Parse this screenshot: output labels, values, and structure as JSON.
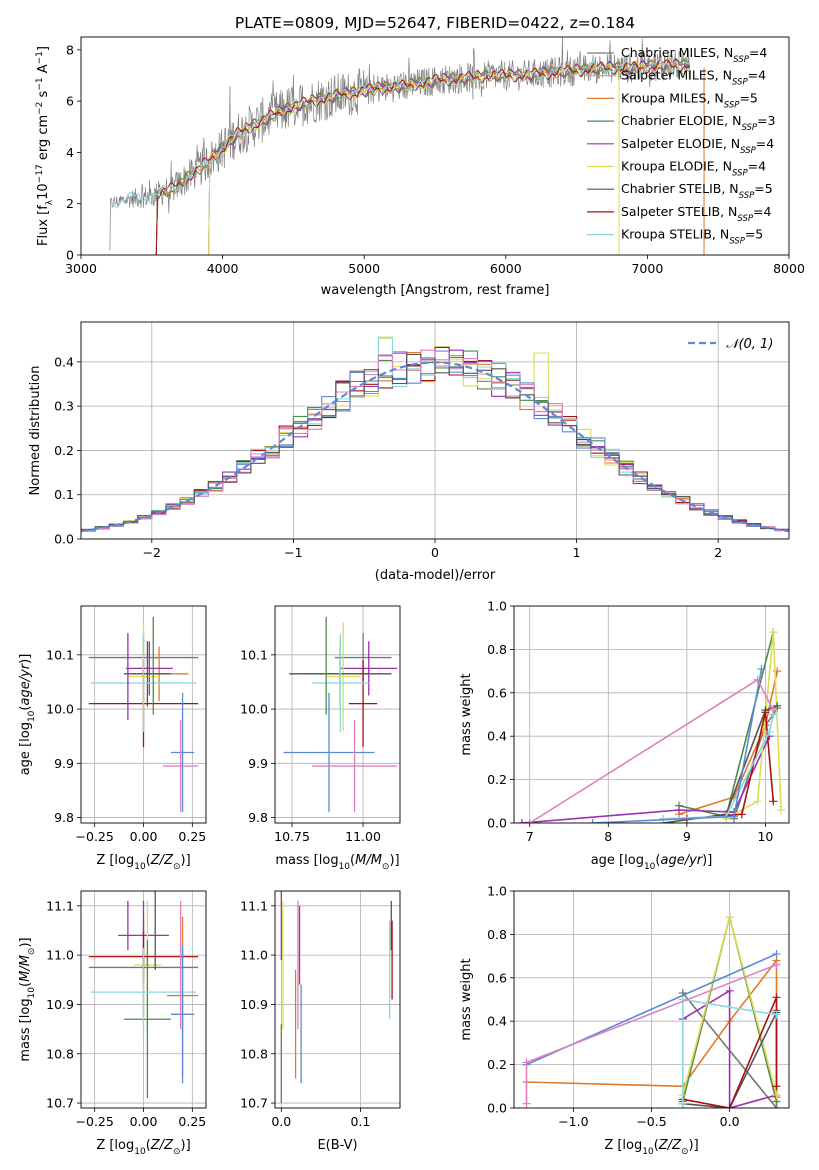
{
  "colors": {
    "Chabrier MILES": "#777777",
    "Salpeter MILES": "#aaaaaa",
    "Kroupa MILES": "#e07b27",
    "Chabrier ELODIE": "#4c8a4c",
    "Salpeter ELODIE": "#9b30b0",
    "Kroupa ELODIE": "#dddd55",
    "Chabrier STELIB": "#555555",
    "Salpeter STELIB": "#aa1111",
    "Kroupa STELIB": "#88d8e0",
    "blue": "#5b8ad8",
    "pink": "#e080c0"
  },
  "chart_data": [
    {
      "id": "spectrum",
      "type": "line",
      "title": "PLATE=0809, MJD=52647, FIBERID=0422, z=0.184",
      "xlabel": "wavelength [Angstrom, rest frame]",
      "ylabel": "Flux [f_λ10^-17 erg cm^-2 s^-1 A^-1]",
      "xlim": [
        3000,
        8000
      ],
      "ylim": [
        0,
        8.5
      ],
      "xticks": [
        3000,
        4000,
        5000,
        6000,
        7000,
        8000
      ],
      "yticks": [
        0,
        2,
        4,
        6,
        8
      ],
      "legend": "top-right",
      "legend_entries": [
        {
          "label": "Chabrier MILES, N",
          "sub": "SSP",
          "n": "=4"
        },
        {
          "label": "Salpeter MILES, N",
          "sub": "SSP",
          "n": "=4"
        },
        {
          "label": "Kroupa MILES, N",
          "sub": "SSP",
          "n": "=5"
        },
        {
          "label": "Chabrier ELODIE, N",
          "sub": "SSP",
          "n": "=3"
        },
        {
          "label": "Salpeter ELODIE, N",
          "sub": "SSP",
          "n": "=4"
        },
        {
          "label": "Kroupa ELODIE, N",
          "sub": "SSP",
          "n": "=4"
        },
        {
          "label": "Chabrier STELIB, N",
          "sub": "SSP",
          "n": "=5"
        },
        {
          "label": "Salpeter STELIB, N",
          "sub": "SSP",
          "n": "=4"
        },
        {
          "label": "Kroupa STELIB, N",
          "sub": "SSP",
          "n": "=5"
        }
      ],
      "continuum": {
        "x": [
          3200,
          3350,
          3500,
          3650,
          3800,
          3950,
          4100,
          4300,
          4500,
          4700,
          4900,
          5100,
          5300,
          5500,
          5700,
          5900,
          6100,
          6300,
          6500,
          6700,
          6900,
          7100,
          7300
        ],
        "y": [
          2.0,
          2.2,
          2.3,
          2.6,
          3.2,
          3.9,
          4.7,
          5.3,
          5.8,
          6.1,
          6.3,
          6.5,
          6.6,
          6.8,
          6.9,
          7.0,
          7.0,
          7.1,
          7.2,
          7.3,
          7.3,
          7.4,
          7.4
        ]
      }
    },
    {
      "id": "residuals",
      "type": "histogram",
      "xlabel": "(data-model)/error",
      "ylabel": "Normed distribution",
      "xlim": [
        -2.5,
        2.5
      ],
      "ylim": [
        0,
        0.49
      ],
      "xticks": [
        -2,
        -1,
        0,
        1,
        2
      ],
      "yticks": [
        0.0,
        0.1,
        0.2,
        0.3,
        0.4
      ],
      "legend_label": "𝒩(0, 1)",
      "legend": "top-right",
      "bin_width": 0.1,
      "bin_start": -2.5
    },
    {
      "id": "age-vs-Z",
      "type": "errorbar",
      "xlabel": "Z [log10(Z/Z⊙)]",
      "ylabel": "age  [log10(age/yr)]",
      "xlim": [
        -0.32,
        0.32
      ],
      "ylim": [
        9.79,
        10.19
      ],
      "xticks": [
        -0.25,
        0.0,
        0.25
      ],
      "yticks": [
        9.8,
        9.9,
        10.0,
        10.1
      ],
      "points": [
        {
          "x": 0.0,
          "y": 10.095,
          "xerr": 0.28,
          "yerr": 0.045,
          "c": "Chabrier MILES"
        },
        {
          "x": 0.08,
          "y": 10.065,
          "xerr": 0.15,
          "yerr": 0.05,
          "c": "Kroupa MILES"
        },
        {
          "x": 0.03,
          "y": 10.075,
          "xerr": 0.12,
          "yerr": 0.05,
          "c": "Salpeter ELODIE"
        },
        {
          "x": 0.0,
          "y": 10.06,
          "xerr": 0.08,
          "yerr": 0.1,
          "c": "Kroupa ELODIE"
        },
        {
          "x": 0.02,
          "y": 10.065,
          "xerr": 0.12,
          "yerr": 0.06,
          "c": "Chabrier STELIB"
        },
        {
          "x": 0.0,
          "y": 10.01,
          "xerr": 0.28,
          "yerr": 0.08,
          "c": "Salpeter STELIB"
        },
        {
          "x": 0.0,
          "y": 10.048,
          "xerr": 0.27,
          "yerr": 0.09,
          "c": "Kroupa STELIB"
        },
        {
          "x": 0.2,
          "y": 9.92,
          "xerr": 0.06,
          "yerr": 0.11,
          "c": "blue"
        },
        {
          "x": 0.19,
          "y": 9.895,
          "xerr": 0.09,
          "yerr": 0.085,
          "c": "pink"
        },
        {
          "x": -0.08,
          "y": 10.06,
          "xerr": 0.0,
          "yerr": 0.08,
          "c": "Salpeter ELODIE"
        },
        {
          "x": 0.05,
          "y": 10.08,
          "xerr": 0.0,
          "yerr": 0.09,
          "c": "Chabrier ELODIE"
        }
      ]
    },
    {
      "id": "age-vs-mass",
      "type": "errorbar",
      "xlabel": "mass [log10(M/M⊙)]",
      "ylabel": "",
      "xlim": [
        10.69,
        11.13
      ],
      "ylim": [
        9.79,
        10.19
      ],
      "xticks": [
        10.75,
        11.0
      ],
      "yticks": [
        9.8,
        9.9,
        10.0,
        10.1
      ],
      "points": [
        {
          "x": 11.0,
          "y": 10.095,
          "xerr": 0.1,
          "yerr": 0.045,
          "c": "Chabrier MILES"
        },
        {
          "x": 10.92,
          "y": 10.065,
          "xerr": 0.14,
          "yerr": 0.05,
          "c": "Kroupa MILES"
        },
        {
          "x": 11.02,
          "y": 10.075,
          "xerr": 0.1,
          "yerr": 0.05,
          "c": "Salpeter ELODIE"
        },
        {
          "x": 10.93,
          "y": 10.06,
          "xerr": 0.06,
          "yerr": 0.1,
          "c": "Kroupa ELODIE"
        },
        {
          "x": 10.92,
          "y": 10.065,
          "xerr": 0.18,
          "yerr": 0.06,
          "c": "Chabrier STELIB"
        },
        {
          "x": 11.0,
          "y": 10.01,
          "xerr": 0.05,
          "yerr": 0.08,
          "c": "Salpeter STELIB"
        },
        {
          "x": 10.92,
          "y": 10.048,
          "xerr": 0.1,
          "yerr": 0.09,
          "c": "Kroupa STELIB"
        },
        {
          "x": 10.88,
          "y": 9.92,
          "xerr": 0.16,
          "yerr": 0.11,
          "c": "blue"
        },
        {
          "x": 10.97,
          "y": 9.895,
          "xerr": 0.15,
          "yerr": 0.085,
          "c": "pink"
        },
        {
          "x": 10.87,
          "y": 10.08,
          "xerr": 0.0,
          "yerr": 0.09,
          "c": "Chabrier ELODIE"
        }
      ]
    },
    {
      "id": "massweight-vs-age",
      "type": "line",
      "xlabel": "age  [log10(age/yr)]",
      "ylabel": "mass weight",
      "xlim": [
        6.8,
        10.3
      ],
      "ylim": [
        0.0,
        1.0
      ],
      "xticks": [
        7,
        8,
        9,
        10
      ],
      "yticks": [
        0.0,
        0.2,
        0.4,
        0.6,
        0.8,
        1.0
      ],
      "series": [
        {
          "c": "Chabrier MILES",
          "x": [
            9.6,
            10.0,
            10.1,
            10.15
          ],
          "y": [
            0.02,
            0.45,
            0.5,
            0.53
          ]
        },
        {
          "c": "Kroupa MILES",
          "x": [
            8.9,
            9.6,
            10.0,
            10.15
          ],
          "y": [
            0.04,
            0.12,
            0.45,
            0.7
          ]
        },
        {
          "c": "Chabrier ELODIE",
          "x": [
            8.9,
            9.5,
            10.1
          ],
          "y": [
            0.08,
            0.03,
            0.88
          ]
        },
        {
          "c": "Salpeter ELODIE",
          "x": [
            6.9,
            8.9,
            9.6,
            10.05
          ],
          "y": [
            0.0,
            0.06,
            0.05,
            0.4
          ]
        },
        {
          "c": "Kroupa ELODIE",
          "x": [
            9.5,
            9.9,
            10.1,
            10.2
          ],
          "y": [
            0.02,
            0.1,
            0.88,
            0.06
          ]
        },
        {
          "c": "Chabrier STELIB",
          "x": [
            8.7,
            9.5,
            10.0,
            10.15
          ],
          "y": [
            0.0,
            0.04,
            0.52,
            0.54
          ]
        },
        {
          "c": "Salpeter STELIB",
          "x": [
            9.0,
            9.7,
            10.0,
            10.1
          ],
          "y": [
            0.02,
            0.04,
            0.51,
            0.1
          ]
        },
        {
          "c": "Kroupa STELIB",
          "x": [
            8.7,
            9.5,
            10.05,
            10.1
          ],
          "y": [
            0.02,
            0.03,
            0.42,
            0.5
          ]
        },
        {
          "c": "blue",
          "x": [
            7.8,
            9.6,
            9.95
          ],
          "y": [
            0.0,
            0.03,
            0.71
          ]
        },
        {
          "c": "pink",
          "x": [
            7.0,
            9.9,
            10.1
          ],
          "y": [
            0.0,
            0.66,
            0.52
          ]
        }
      ]
    },
    {
      "id": "mass-vs-Z",
      "type": "errorbar",
      "xlabel": "Z [log10(Z/Z⊙)]",
      "ylabel": "mass [log10(M/M⊙)]",
      "xlim": [
        -0.32,
        0.32
      ],
      "ylim": [
        10.69,
        11.13
      ],
      "xticks": [
        -0.25,
        0.0,
        0.25
      ],
      "yticks": [
        10.7,
        10.8,
        10.9,
        11.0,
        11.1
      ],
      "points": [
        {
          "x": 0.0,
          "y": 10.975,
          "xerr": 0.28,
          "yerr": 0.1,
          "c": "Chabrier MILES"
        },
        {
          "x": 0.2,
          "y": 10.918,
          "xerr": 0.08,
          "yerr": 0.16,
          "c": "Kroupa MILES"
        },
        {
          "x": 0.0,
          "y": 11.04,
          "xerr": 0.13,
          "yerr": 0.07,
          "c": "Salpeter ELODIE"
        },
        {
          "x": 0.02,
          "y": 10.98,
          "xerr": 0.07,
          "yerr": 0.13,
          "c": "Kroupa ELODIE"
        },
        {
          "x": 0.02,
          "y": 10.87,
          "xerr": 0.12,
          "yerr": 0.16,
          "c": "Chabrier ELODIE"
        },
        {
          "x": 0.0,
          "y": 10.997,
          "xerr": 0.28,
          "yerr": 0.05,
          "c": "Salpeter STELIB"
        },
        {
          "x": 0.0,
          "y": 10.925,
          "xerr": 0.27,
          "yerr": 0.09,
          "c": "Kroupa STELIB"
        },
        {
          "x": 0.2,
          "y": 10.88,
          "xerr": 0.06,
          "yerr": 0.14,
          "c": "blue"
        },
        {
          "x": 0.19,
          "y": 10.98,
          "xerr": 0.0,
          "yerr": 0.13,
          "c": "pink"
        },
        {
          "x": 0.06,
          "y": 11.05,
          "xerr": 0.0,
          "yerr": 0.08,
          "c": "Chabrier STELIB"
        },
        {
          "x": -0.08,
          "y": 11.06,
          "xerr": 0.0,
          "yerr": 0.05,
          "c": "Salpeter ELODIE"
        }
      ]
    },
    {
      "id": "mass-vs-EBV",
      "type": "errorbar",
      "xlabel": "E(B-V)",
      "ylabel": "",
      "xlim": [
        -0.008,
        0.15
      ],
      "ylim": [
        10.69,
        11.13
      ],
      "xticks": [
        0.0,
        0.1
      ],
      "yticks": [
        10.7,
        10.8,
        10.9,
        11.0,
        11.1
      ],
      "points": [
        {
          "x": 0.0,
          "y": 10.78,
          "xerr": 0,
          "yerr": 0.08,
          "c": "Chabrier ELODIE"
        },
        {
          "x": 0.0,
          "y": 11.06,
          "xerr": 0,
          "yerr": 0.07,
          "c": "Salpeter ELODIE"
        },
        {
          "x": 0.002,
          "y": 10.98,
          "xerr": 0,
          "yerr": 0.13,
          "c": "Kroupa ELODIE"
        },
        {
          "x": 0.018,
          "y": 10.86,
          "xerr": 0,
          "yerr": 0.11,
          "c": "Kroupa MILES"
        },
        {
          "x": 0.023,
          "y": 11.02,
          "xerr": 0,
          "yerr": 0.08,
          "c": "Salpeter ELODIE"
        },
        {
          "x": 0.021,
          "y": 10.98,
          "xerr": 0,
          "yerr": 0.13,
          "c": "pink"
        },
        {
          "x": 0.025,
          "y": 10.84,
          "xerr": 0,
          "yerr": 0.1,
          "c": "blue"
        },
        {
          "x": 0.137,
          "y": 10.97,
          "xerr": 0,
          "yerr": 0.1,
          "c": "Kroupa STELIB"
        },
        {
          "x": 0.139,
          "y": 11.06,
          "xerr": 0,
          "yerr": 0.05,
          "c": "Chabrier STELIB"
        },
        {
          "x": 0.14,
          "y": 10.99,
          "xerr": 0,
          "yerr": 0.08,
          "c": "Salpeter STELIB"
        }
      ]
    },
    {
      "id": "massweight-vs-Z",
      "type": "line",
      "xlabel": "Z [log10(Z/Z⊙)]",
      "ylabel": "mass weight",
      "xlim": [
        -1.38,
        0.38
      ],
      "ylim": [
        0.0,
        1.0
      ],
      "xticks": [
        -1.0,
        -0.5,
        0.0
      ],
      "yticks": [
        0.0,
        0.2,
        0.4,
        0.6,
        0.8,
        1.0
      ],
      "series": [
        {
          "c": "Chabrier MILES",
          "x": [
            -0.3,
            0.3,
            0.3
          ],
          "y": [
            0.53,
            0.0,
            0.45
          ]
        },
        {
          "c": "Kroupa MILES",
          "x": [
            -1.3,
            -0.3,
            0.0,
            0.3,
            0.3
          ],
          "y": [
            0.12,
            0.1,
            0.4,
            0.68,
            0.05
          ]
        },
        {
          "c": "Chabrier ELODIE",
          "x": [
            -0.3,
            0.0,
            0.3
          ],
          "y": [
            0.03,
            0.88,
            0.03
          ]
        },
        {
          "c": "Salpeter ELODIE",
          "x": [
            -0.3,
            0.0,
            0.0,
            0.3
          ],
          "y": [
            0.41,
            0.54,
            0.0,
            0.06
          ]
        },
        {
          "c": "Kroupa ELODIE",
          "x": [
            -0.3,
            0.0,
            0.3
          ],
          "y": [
            0.06,
            0.88,
            0.06
          ]
        },
        {
          "c": "Chabrier STELIB",
          "x": [
            -0.3,
            0.0,
            0.3
          ],
          "y": [
            0.02,
            0.0,
            0.44
          ]
        },
        {
          "c": "Salpeter STELIB",
          "x": [
            -0.3,
            0.0,
            0.3,
            0.3
          ],
          "y": [
            0.04,
            0.0,
            0.51,
            0.1
          ]
        },
        {
          "c": "Kroupa STELIB",
          "x": [
            -0.3,
            -0.3,
            0.3
          ],
          "y": [
            0.02,
            0.5,
            0.43
          ]
        },
        {
          "c": "blue",
          "x": [
            -1.3,
            0.3
          ],
          "y": [
            0.2,
            0.71
          ]
        },
        {
          "c": "pink",
          "x": [
            -1.3,
            -1.3,
            0.3
          ],
          "y": [
            0.02,
            0.21,
            0.66
          ]
        }
      ]
    }
  ]
}
